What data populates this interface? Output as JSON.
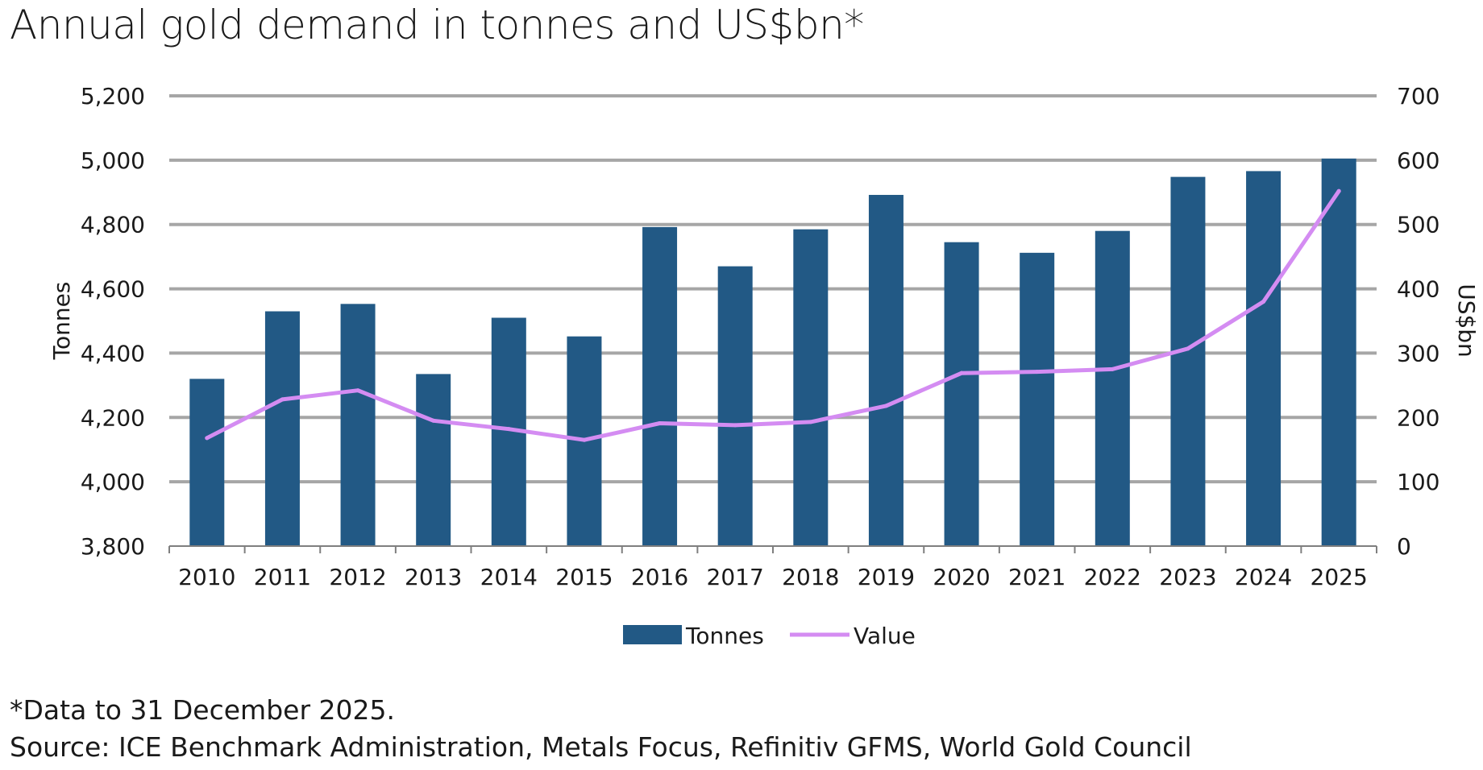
{
  "title": "Annual gold demand in tonnes and US$bn*",
  "footnote": "*Data to 31 December 2025.",
  "source": "Source: ICE Benchmark Administration, Metals Focus, Refinitiv GFMS, World Gold Council",
  "colors": {
    "bar": "#225985",
    "line": "#d48cf2",
    "grid": "#a6a6a6"
  },
  "chart_data": {
    "type": "bar",
    "categories": [
      "2010",
      "2011",
      "2012",
      "2013",
      "2014",
      "2015",
      "2016",
      "2017",
      "2018",
      "2019",
      "2020",
      "2021",
      "2022",
      "2023",
      "2024",
      "2025"
    ],
    "series": [
      {
        "name": "Tonnes",
        "type": "bar",
        "axis": "left",
        "values": [
          4320,
          4530,
          4553,
          4335,
          4510,
          4452,
          4792,
          4670,
          4785,
          4892,
          4745,
          4712,
          4780,
          4948,
          4966,
          5005
        ]
      },
      {
        "name": "Value",
        "type": "line",
        "axis": "right",
        "values": [
          168,
          228,
          242,
          195,
          182,
          165,
          191,
          188,
          193,
          218,
          269,
          271,
          275,
          307,
          380,
          552
        ]
      }
    ],
    "ylabel": "Tonnes",
    "y2label": "US$bn",
    "ylim": [
      3800,
      5200
    ],
    "y2lim": [
      0,
      700
    ],
    "yticks": [
      "3,800",
      "4,000",
      "4,200",
      "4,400",
      "4,600",
      "4,800",
      "5,000",
      "5,200"
    ],
    "y2ticks": [
      "0",
      "100",
      "200",
      "300",
      "400",
      "500",
      "600",
      "700"
    ],
    "grid": true,
    "legend": "bottom"
  }
}
